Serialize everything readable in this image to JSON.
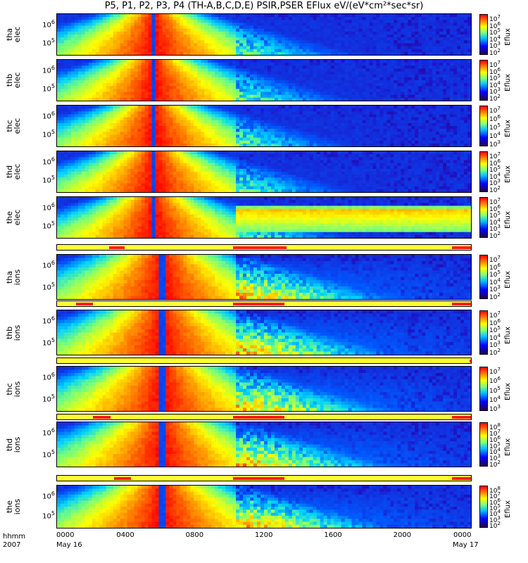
{
  "title": "P5, P1, P2, P3, P4 (TH-A,B,C,D,E) PSIR,PSER EFlux eV/(eV*cm²*sec*sr)",
  "colorbar_label": "Eflux",
  "colors": {
    "flag_bg": "#ffff33",
    "flag_seg": "#ff1a1a"
  },
  "x_axis": {
    "header": "hhmm",
    "year": "2007",
    "ticks": [
      "0000",
      "0400",
      "0800",
      "1200",
      "1600",
      "2000",
      "0000"
    ],
    "start_date": "May 16",
    "end_date": "May 17"
  },
  "panels": [
    {
      "id": "tha_elec",
      "label1": "tha",
      "label2": "elec",
      "yticks": [
        "10",
        "10"
      ],
      "yexp": [
        "6",
        "5"
      ],
      "ctick_b": "10",
      "cexp": [
        "7",
        "6",
        "5",
        "4",
        "3",
        "2"
      ]
    },
    {
      "id": "thb_elec",
      "label1": "thb",
      "label2": "elec",
      "yticks": [
        "10",
        "10"
      ],
      "yexp": [
        "6",
        "5"
      ],
      "ctick_b": "10",
      "cexp": [
        "7",
        "6",
        "5",
        "4",
        "3",
        "2"
      ]
    },
    {
      "id": "thc_elec",
      "label1": "thc",
      "label2": "elec",
      "yticks": [
        "10",
        "10"
      ],
      "yexp": [
        "6",
        "5"
      ],
      "ctick_b": "10",
      "cexp": [
        "7",
        "6",
        "5",
        "4",
        "3"
      ]
    },
    {
      "id": "thd_elec",
      "label1": "thd",
      "label2": "elec",
      "yticks": [
        "10",
        "10"
      ],
      "yexp": [
        "6",
        "5"
      ],
      "ctick_b": "10",
      "cexp": [
        "7",
        "6",
        "5",
        "4",
        "3",
        "2"
      ]
    },
    {
      "id": "the_elec",
      "label1": "the",
      "label2": "elec",
      "yticks": [
        "10",
        "10"
      ],
      "yexp": [
        "6",
        "5"
      ],
      "ctick_b": "10",
      "cexp": [
        "7",
        "6",
        "5",
        "4",
        "3",
        "2"
      ]
    },
    {
      "id": "tha_ions",
      "label1": "tha",
      "label2": "ions",
      "yticks": [
        "10",
        "10"
      ],
      "yexp": [
        "6",
        "5"
      ],
      "ctick_b": "10",
      "cexp": [
        "7",
        "6",
        "5",
        "4",
        "3",
        "2"
      ]
    },
    {
      "id": "thb_ions",
      "label1": "thb",
      "label2": "ions",
      "yticks": [
        "10",
        "10"
      ],
      "yexp": [
        "6",
        "5"
      ],
      "ctick_b": "10",
      "cexp": [
        "7",
        "6",
        "5",
        "4",
        "3",
        "2"
      ]
    },
    {
      "id": "thc_ions",
      "label1": "thc",
      "label2": "ions",
      "yticks": [
        "10",
        "10"
      ],
      "yexp": [
        "6",
        "5"
      ],
      "ctick_b": "10",
      "cexp": [
        "7",
        "6",
        "5",
        "4",
        "3"
      ]
    },
    {
      "id": "thd_ions",
      "label1": "thd",
      "label2": "ions",
      "yticks": [
        "10",
        "10"
      ],
      "yexp": [
        "6",
        "5"
      ],
      "ctick_b": "10",
      "cexp": [
        "8",
        "7",
        "6",
        "5",
        "4",
        "3",
        "2"
      ]
    },
    {
      "id": "the_ions",
      "label1": "the",
      "label2": "ions",
      "yticks": [
        "10",
        "10"
      ],
      "yexp": [
        "6",
        "5"
      ],
      "ctick_b": "10",
      "cexp": [
        "8",
        "7",
        "6",
        "5",
        "4",
        "3",
        "2"
      ]
    }
  ],
  "flag_bars": [
    {
      "segments_hours": [
        [
          3.0,
          3.9
        ],
        [
          10.2,
          13.3
        ],
        [
          22.9,
          24.0
        ]
      ]
    },
    {
      "segments_hours": [
        [
          1.1,
          2.1
        ],
        [
          10.2,
          13.2
        ],
        [
          22.9,
          24.0
        ]
      ]
    },
    {
      "segments_hours": [
        [
          23.9,
          24.0
        ]
      ]
    },
    {
      "segments_hours": [
        [
          2.1,
          3.1
        ],
        [
          10.2,
          13.2
        ],
        [
          22.9,
          24.0
        ]
      ]
    },
    {
      "segments_hours": [
        [
          3.3,
          4.3
        ],
        [
          10.2,
          13.2
        ],
        [
          22.9,
          24.0
        ]
      ]
    }
  ],
  "chart_data": {
    "type": "heatmap",
    "title": "P5, P1, P2, P3, P4 (TH-A,B,C,D,E) PSIR,PSER EFlux eV/(eV*cm²*sec*sr)",
    "x_range_hours": [
      0,
      24
    ],
    "x_ticks": [
      "0000",
      "0400",
      "0800",
      "1200",
      "1600",
      "2000",
      "0000"
    ],
    "y_scale": "log",
    "y_ticks": [
      "10^5",
      "10^6"
    ],
    "colorbar_label": "Eflux",
    "colorbar_scale": "log",
    "colorbar_range": [
      "10^2",
      "10^7"
    ],
    "series": [
      {
        "name": "tha elec"
      },
      {
        "name": "thb elec"
      },
      {
        "name": "thc elec"
      },
      {
        "name": "thd elec"
      },
      {
        "name": "the elec"
      },
      {
        "name": "tha ions"
      },
      {
        "name": "thb ions"
      },
      {
        "name": "thc ions"
      },
      {
        "name": "thd ions"
      },
      {
        "name": "the ions"
      }
    ]
  }
}
